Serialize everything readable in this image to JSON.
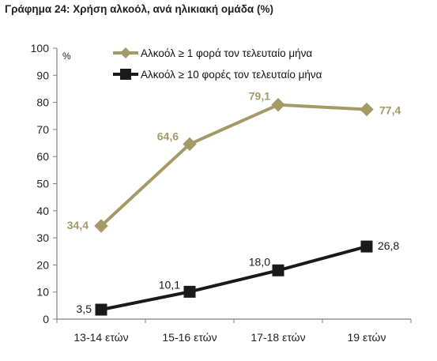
{
  "chart_data": {
    "type": "line",
    "title": "Γράφημα 24: Χρήση αλκοόλ, ανά ηλικιακή ομάδα (%)",
    "ylabel": "%",
    "categories": [
      "13-14 ετών",
      "15-16 ετών",
      "17-18 ετών",
      "19 ετών"
    ],
    "ylim": [
      0,
      100
    ],
    "yticks": [
      0,
      10,
      20,
      30,
      40,
      50,
      60,
      70,
      80,
      90,
      100
    ],
    "grid": false,
    "legend": "top",
    "series": [
      {
        "name": "Αλκοόλ ≥ 1 φορά τον τελευταίο μήνα",
        "values": [
          34.4,
          64.6,
          79.1,
          77.4
        ],
        "labels": [
          "34,4",
          "64,6",
          "79,1",
          "77,4"
        ],
        "color": "#a49a67",
        "marker": "diamond"
      },
      {
        "name": "Αλκοόλ ≥ 10 φορές τον τελευταίο μήνα",
        "values": [
          3.5,
          10.1,
          18.0,
          26.8
        ],
        "labels": [
          "3,5",
          "10,1",
          "18,0",
          "26,8"
        ],
        "color": "#1a1a1a",
        "marker": "square"
      }
    ]
  }
}
